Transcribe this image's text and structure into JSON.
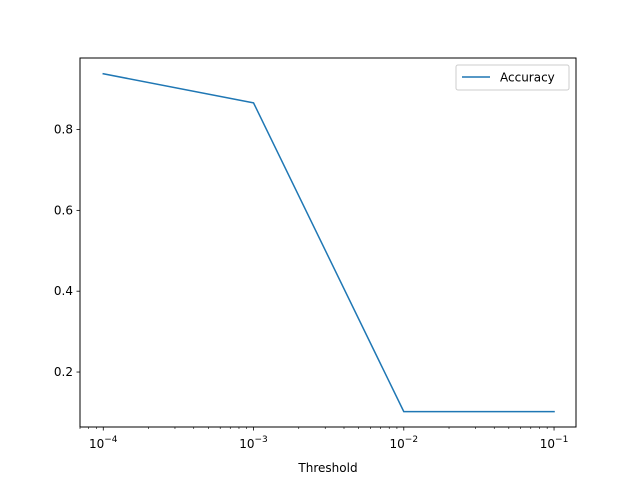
{
  "chart_data": {
    "type": "line",
    "title": "",
    "xlabel": "Threshold",
    "ylabel": "",
    "xscale": "log",
    "xlim": [
      7e-05,
      0.14
    ],
    "ylim": [
      0.064,
      0.977
    ],
    "grid": false,
    "legend_location": "top-right",
    "x_ticks": [
      {
        "value": 0.0001,
        "base": "10",
        "exp": "−4"
      },
      {
        "value": 0.001,
        "base": "10",
        "exp": "−3"
      },
      {
        "value": 0.01,
        "base": "10",
        "exp": "−2"
      },
      {
        "value": 0.1,
        "base": "10",
        "exp": "−1"
      }
    ],
    "y_ticks": [
      {
        "value": 0.2,
        "label": "0.2"
      },
      {
        "value": 0.4,
        "label": "0.4"
      },
      {
        "value": 0.6,
        "label": "0.6"
      },
      {
        "value": 0.8,
        "label": "0.8"
      }
    ],
    "series": [
      {
        "name": "Accuracy",
        "color": "#1f77b4",
        "x": [
          0.0001,
          0.001,
          0.01,
          0.1
        ],
        "y": [
          0.938,
          0.866,
          0.102,
          0.102
        ]
      }
    ]
  }
}
